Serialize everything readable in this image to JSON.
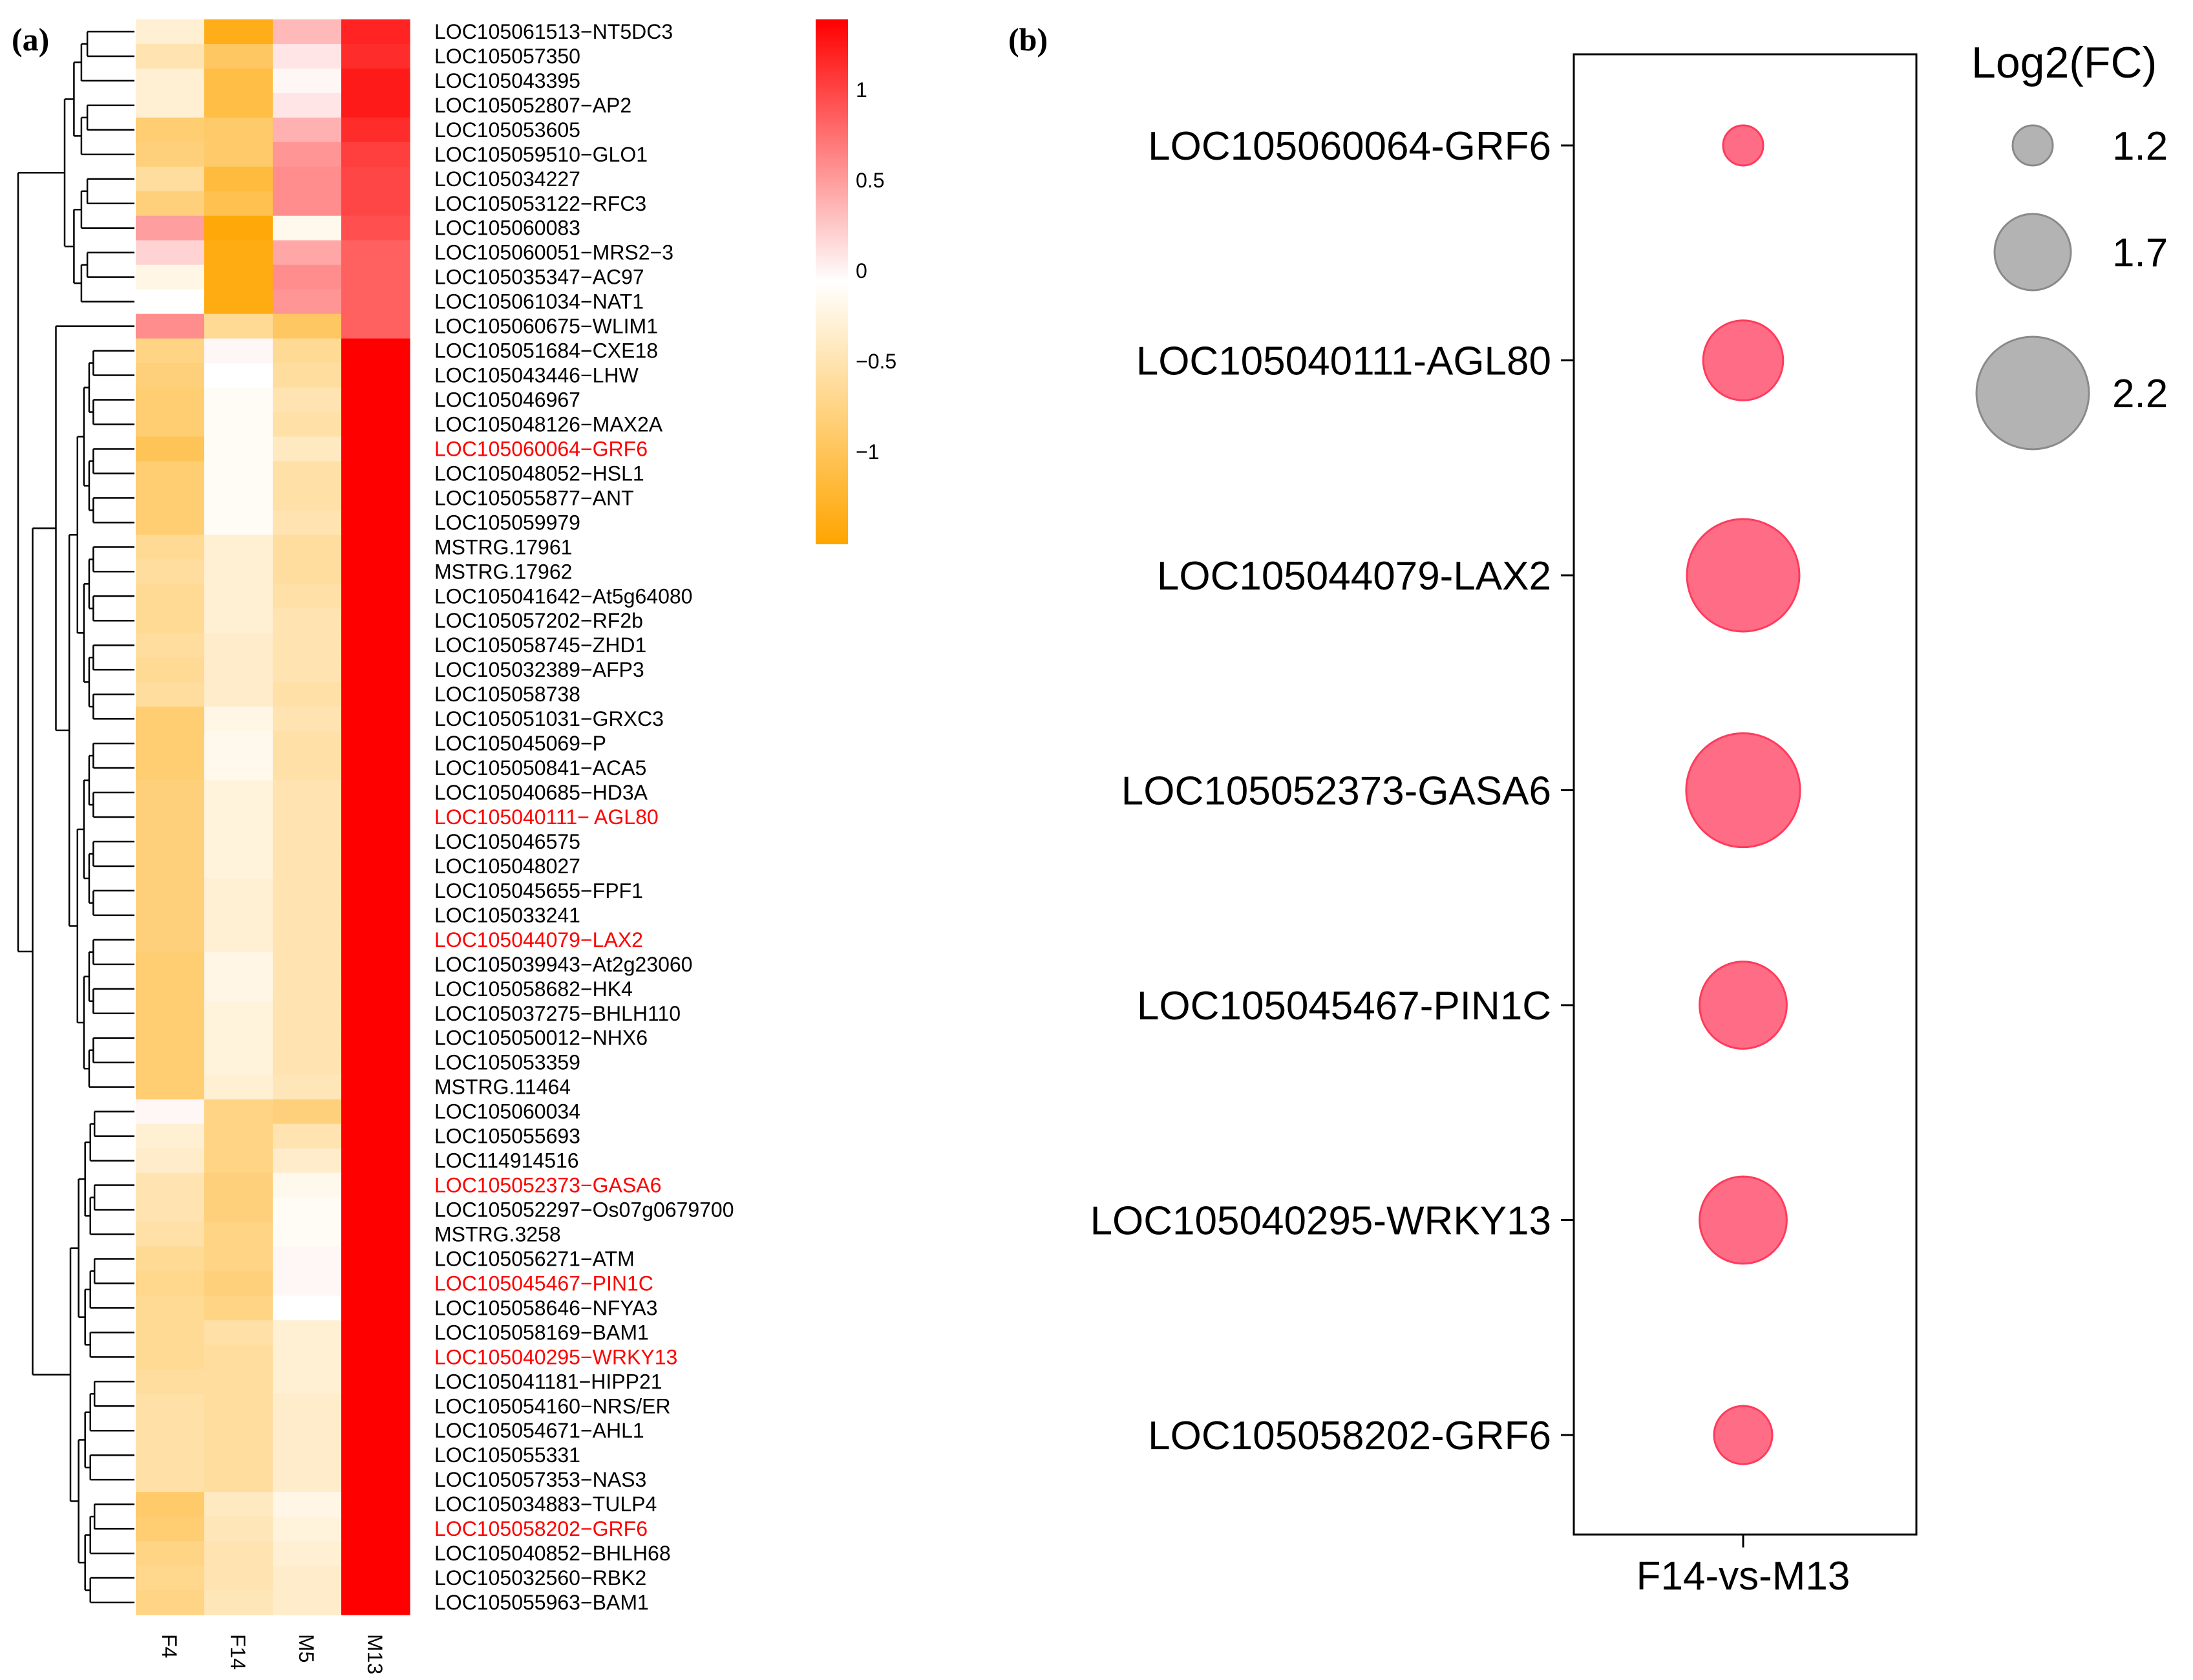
{
  "panels": {
    "a_label": "(a)",
    "b_label": "(b)"
  },
  "chart_data": [
    {
      "type": "heatmap",
      "title": "",
      "columns": [
        "F4",
        "F14",
        "M5",
        "M13"
      ],
      "rows": [
        {
          "label": "LOC105061513−NT5DC3",
          "values": [
            -0.25,
            -1.3,
            0.4,
            1.25
          ],
          "highlight": false
        },
        {
          "label": "LOC105057350",
          "values": [
            -0.45,
            -0.9,
            0.15,
            1.2
          ],
          "highlight": false
        },
        {
          "label": "LOC105043395",
          "values": [
            -0.25,
            -1.05,
            0.05,
            1.3
          ],
          "highlight": false
        },
        {
          "label": "LOC105052807−AP2",
          "values": [
            -0.25,
            -1.05,
            0.15,
            1.3
          ],
          "highlight": false
        },
        {
          "label": "LOC105053605",
          "values": [
            -0.8,
            -0.85,
            0.45,
            1.2
          ],
          "highlight": false
        },
        {
          "label": "LOC105059510−GLO1",
          "values": [
            -0.75,
            -0.85,
            0.6,
            1.1
          ],
          "highlight": false
        },
        {
          "label": "LOC105034227",
          "values": [
            -0.55,
            -1.1,
            0.65,
            1.05
          ],
          "highlight": false
        },
        {
          "label": "LOC105053122−RFC3",
          "values": [
            -0.75,
            -1.0,
            0.65,
            1.05
          ],
          "highlight": false
        },
        {
          "label": "LOC105060083",
          "values": [
            0.55,
            -1.4,
            -0.1,
            1.0
          ],
          "highlight": false
        },
        {
          "label": "LOC105060051−MRS2−3",
          "values": [
            0.25,
            -1.35,
            0.5,
            0.9
          ],
          "highlight": false
        },
        {
          "label": "LOC105035347−AC97",
          "values": [
            -0.15,
            -1.35,
            0.65,
            0.9
          ],
          "highlight": false
        },
        {
          "label": "LOC105061034−NAT1",
          "values": [
            0.0,
            -1.35,
            0.6,
            0.9
          ],
          "highlight": false
        },
        {
          "label": "LOC105060675−WLIM1",
          "values": [
            0.65,
            -0.6,
            -0.9,
            0.9
          ],
          "highlight": false
        },
        {
          "label": "LOC105051684−CXE18",
          "values": [
            -0.7,
            0.05,
            -0.6,
            1.45
          ],
          "highlight": false
        },
        {
          "label": "LOC105043446−LHW",
          "values": [
            -0.75,
            0.0,
            -0.55,
            1.45
          ],
          "highlight": false
        },
        {
          "label": "LOC105046967",
          "values": [
            -0.8,
            -0.05,
            -0.45,
            1.45
          ],
          "highlight": false
        },
        {
          "label": "LOC105048126−MAX2A",
          "values": [
            -0.8,
            -0.05,
            -0.5,
            1.45
          ],
          "highlight": false
        },
        {
          "label": "LOC105060064−GRF6",
          "values": [
            -0.95,
            -0.05,
            -0.35,
            1.45
          ],
          "highlight": true
        },
        {
          "label": "LOC105048052−HSL1",
          "values": [
            -0.8,
            -0.05,
            -0.5,
            1.45
          ],
          "highlight": false
        },
        {
          "label": "LOC105055877−ANT",
          "values": [
            -0.8,
            -0.05,
            -0.5,
            1.45
          ],
          "highlight": false
        },
        {
          "label": "LOC105059979",
          "values": [
            -0.8,
            -0.05,
            -0.45,
            1.45
          ],
          "highlight": false
        },
        {
          "label": "MSTRG.17961",
          "values": [
            -0.6,
            -0.25,
            -0.55,
            1.45
          ],
          "highlight": false
        },
        {
          "label": "MSTRG.17962",
          "values": [
            -0.55,
            -0.25,
            -0.55,
            1.45
          ],
          "highlight": false
        },
        {
          "label": "LOC105041642−At5g64080",
          "values": [
            -0.6,
            -0.25,
            -0.5,
            1.45
          ],
          "highlight": false
        },
        {
          "label": "LOC105057202−RF2b",
          "values": [
            -0.6,
            -0.25,
            -0.45,
            1.45
          ],
          "highlight": false
        },
        {
          "label": "LOC105058745−ZHD1",
          "values": [
            -0.55,
            -0.3,
            -0.45,
            1.45
          ],
          "highlight": false
        },
        {
          "label": "LOC105032389−AFP3",
          "values": [
            -0.6,
            -0.3,
            -0.45,
            1.45
          ],
          "highlight": false
        },
        {
          "label": "LOC105058738",
          "values": [
            -0.55,
            -0.3,
            -0.5,
            1.45
          ],
          "highlight": false
        },
        {
          "label": "LOC105051031−GRXC3",
          "values": [
            -0.8,
            -0.15,
            -0.45,
            1.45
          ],
          "highlight": false
        },
        {
          "label": "LOC105045069−P",
          "values": [
            -0.8,
            -0.1,
            -0.5,
            1.45
          ],
          "highlight": false
        },
        {
          "label": "LOC105050841−ACA5",
          "values": [
            -0.8,
            -0.1,
            -0.5,
            1.45
          ],
          "highlight": false
        },
        {
          "label": "LOC105040685−HD3A",
          "values": [
            -0.75,
            -0.2,
            -0.45,
            1.45
          ],
          "highlight": false
        },
        {
          "label": "LOC105040111−   AGL80",
          "values": [
            -0.75,
            -0.2,
            -0.45,
            1.45
          ],
          "highlight": true
        },
        {
          "label": "LOC105046575",
          "values": [
            -0.75,
            -0.2,
            -0.45,
            1.45
          ],
          "highlight": false
        },
        {
          "label": "LOC105048027",
          "values": [
            -0.75,
            -0.2,
            -0.45,
            1.45
          ],
          "highlight": false
        },
        {
          "label": "LOC105045655−FPF1",
          "values": [
            -0.75,
            -0.25,
            -0.45,
            1.45
          ],
          "highlight": false
        },
        {
          "label": "LOC105033241",
          "values": [
            -0.75,
            -0.25,
            -0.45,
            1.45
          ],
          "highlight": false
        },
        {
          "label": "LOC105044079−LAX2",
          "values": [
            -0.75,
            -0.25,
            -0.45,
            1.45
          ],
          "highlight": true
        },
        {
          "label": "LOC105039943−At2g23060",
          "values": [
            -0.8,
            -0.15,
            -0.45,
            1.45
          ],
          "highlight": false
        },
        {
          "label": "LOC105058682−HK4",
          "values": [
            -0.8,
            -0.15,
            -0.45,
            1.45
          ],
          "highlight": false
        },
        {
          "label": "LOC105037275−BHLH110",
          "values": [
            -0.8,
            -0.2,
            -0.45,
            1.45
          ],
          "highlight": false
        },
        {
          "label": "LOC105050012−NHX6",
          "values": [
            -0.8,
            -0.2,
            -0.45,
            1.45
          ],
          "highlight": false
        },
        {
          "label": "LOC105053359",
          "values": [
            -0.8,
            -0.2,
            -0.45,
            1.45
          ],
          "highlight": false
        },
        {
          "label": "MSTRG.11464",
          "values": [
            -0.8,
            -0.25,
            -0.4,
            1.45
          ],
          "highlight": false
        },
        {
          "label": "LOC105060034",
          "values": [
            0.05,
            -0.7,
            -0.75,
            1.45
          ],
          "highlight": false
        },
        {
          "label": "LOC105055693",
          "values": [
            -0.25,
            -0.7,
            -0.45,
            1.45
          ],
          "highlight": false
        },
        {
          "label": "LOC114914516",
          "values": [
            -0.3,
            -0.7,
            -0.3,
            1.45
          ],
          "highlight": false
        },
        {
          "label": "LOC105052373−GASA6",
          "values": [
            -0.45,
            -0.75,
            -0.1,
            1.45
          ],
          "highlight": true
        },
        {
          "label": "LOC105052297−Os07g0679700",
          "values": [
            -0.45,
            -0.75,
            -0.05,
            1.45
          ],
          "highlight": false
        },
        {
          "label": "MSTRG.3258",
          "values": [
            -0.5,
            -0.7,
            -0.05,
            1.45
          ],
          "highlight": false
        },
        {
          "label": "LOC105056271−ATM",
          "values": [
            -0.6,
            -0.7,
            0.05,
            1.45
          ],
          "highlight": false
        },
        {
          "label": "LOC105045467−PIN1C",
          "values": [
            -0.65,
            -0.75,
            0.05,
            1.45
          ],
          "highlight": true
        },
        {
          "label": "LOC105058646−NFYA3",
          "values": [
            -0.6,
            -0.7,
            0.0,
            1.45
          ],
          "highlight": false
        },
        {
          "label": "LOC105058169−BAM1",
          "values": [
            -0.6,
            -0.5,
            -0.25,
            1.45
          ],
          "highlight": false
        },
        {
          "label": "LOC105040295−WRKY13",
          "values": [
            -0.6,
            -0.55,
            -0.25,
            1.45
          ],
          "highlight": true
        },
        {
          "label": "LOC105041181−HIPP21",
          "values": [
            -0.55,
            -0.55,
            -0.25,
            1.45
          ],
          "highlight": false
        },
        {
          "label": "LOC105054160−NRS/ER",
          "values": [
            -0.5,
            -0.55,
            -0.3,
            1.45
          ],
          "highlight": false
        },
        {
          "label": "LOC105054671−AHL1",
          "values": [
            -0.5,
            -0.55,
            -0.3,
            1.45
          ],
          "highlight": false
        },
        {
          "label": "LOC105055331",
          "values": [
            -0.5,
            -0.55,
            -0.3,
            1.45
          ],
          "highlight": false
        },
        {
          "label": "LOC105057353−NAS3",
          "values": [
            -0.5,
            -0.55,
            -0.3,
            1.45
          ],
          "highlight": false
        },
        {
          "label": "LOC105034883−TULP4",
          "values": [
            -0.85,
            -0.35,
            -0.15,
            1.45
          ],
          "highlight": false
        },
        {
          "label": "LOC105058202−GRF6",
          "values": [
            -0.8,
            -0.4,
            -0.2,
            1.45
          ],
          "highlight": true
        },
        {
          "label": "LOC105040852−BHLH68",
          "values": [
            -0.7,
            -0.45,
            -0.25,
            1.45
          ],
          "highlight": false
        },
        {
          "label": "LOC105032560−RBK2",
          "values": [
            -0.65,
            -0.45,
            -0.3,
            1.45
          ],
          "highlight": false
        },
        {
          "label": "LOC105055963−BAM1",
          "values": [
            -0.7,
            -0.4,
            -0.3,
            1.45
          ],
          "highlight": false
        }
      ],
      "colorbar": {
        "range": [
          -1.45,
          1.45
        ],
        "ticks": [
          1,
          0.5,
          0,
          -0.5,
          -1
        ],
        "tick_labels": [
          "1",
          "0.5",
          "0",
          "−0.5",
          "−1"
        ],
        "low_color": "#FFA500",
        "mid_color": "#FFFFFF",
        "high_color": "#FF0000"
      },
      "highlight_color": "#FF0000"
    },
    {
      "type": "scatter",
      "title": "",
      "x_category": "F14-vs-M13",
      "series": [
        {
          "label": "LOC105060064-GRF6",
          "log2fc": 1.2
        },
        {
          "label": "LOC105040111-AGL80",
          "log2fc": 1.75
        },
        {
          "label": "LOC105044079-LAX2",
          "log2fc": 2.2
        },
        {
          "label": "LOC105052373-GASA6",
          "log2fc": 2.22
        },
        {
          "label": "LOC105045467-PIN1C",
          "log2fc": 1.85
        },
        {
          "label": "LOC105040295-WRKY13",
          "log2fc": 1.85
        },
        {
          "label": "LOC105058202-GRF6",
          "log2fc": 1.45
        }
      ],
      "point_color": "#FF3B5C",
      "size_legend": {
        "title": "Log2(FC)",
        "entries": [
          {
            "label": "1.2",
            "value": 1.2
          },
          {
            "label": "1.7",
            "value": 1.7
          },
          {
            "label": "2.2",
            "value": 2.2
          }
        ],
        "color": "#A6A6A6"
      }
    }
  ]
}
